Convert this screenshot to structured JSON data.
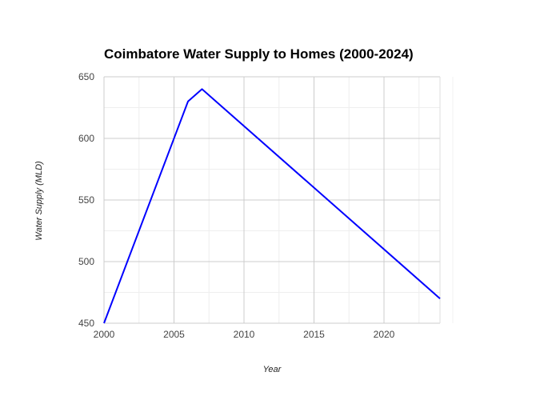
{
  "chart_data": {
    "type": "line",
    "title": "Coimbatore Water Supply to Homes (2000-2024)",
    "xlabel": "Year",
    "ylabel": "Water Supply (MLD)",
    "xlim": [
      2000,
      2024
    ],
    "ylim": [
      450,
      650
    ],
    "x_ticks": [
      2000,
      2005,
      2010,
      2015,
      2020
    ],
    "y_ticks": [
      450,
      500,
      550,
      600,
      650
    ],
    "grid": true,
    "series": [
      {
        "x": [
          2000,
          2006,
          2007,
          2024
        ],
        "values": [
          450,
          630,
          640,
          470
        ],
        "color": "#0000ff"
      }
    ]
  }
}
